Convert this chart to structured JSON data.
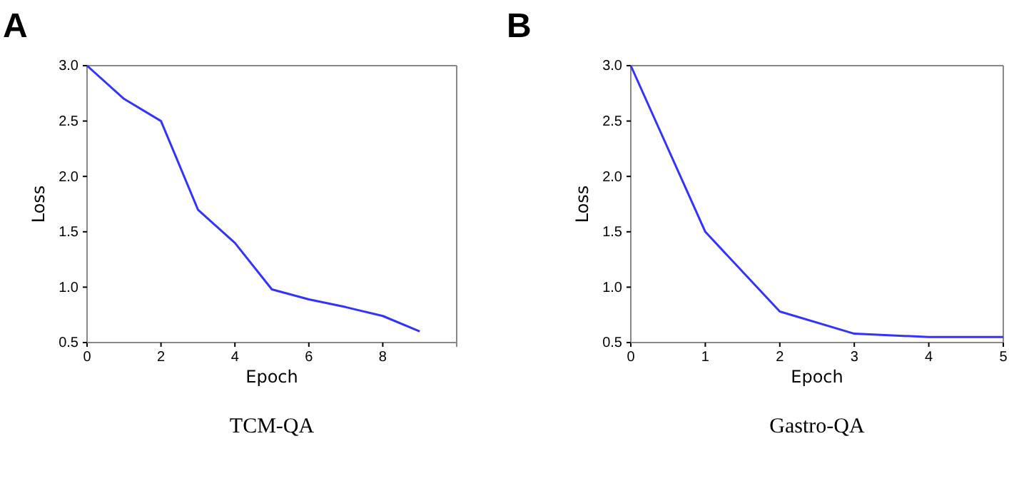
{
  "chart_data": [
    {
      "type": "line",
      "title": "A",
      "xlabel": "Epoch",
      "ylabel": "Loss",
      "x": [
        0,
        1,
        2,
        3,
        4,
        5,
        6,
        7,
        8,
        9
      ],
      "series": [
        {
          "color": "#3333ff",
          "values": [
            3.0,
            2.7,
            2.5,
            1.7,
            1.4,
            0.98,
            0.89,
            0.82,
            0.74,
            0.6
          ]
        }
      ],
      "xlim": [
        0,
        10
      ],
      "xticks": [
        0,
        2,
        4,
        6,
        8
      ],
      "ylim": [
        0.5,
        3.0
      ],
      "yticks": [
        {
          "value": 0.5,
          "label": "0.5"
        },
        {
          "value": 1,
          "label": "1.0"
        },
        {
          "value": 1.5,
          "label": "1.5"
        },
        {
          "value": 2,
          "label": "2.0"
        },
        {
          "value": 2.5,
          "label": "2.5"
        },
        {
          "value": 3,
          "label": "3.0"
        }
      ],
      "grid": false,
      "marker": "none",
      "line_style": "solid",
      "annotations": [
        "TCM-QA"
      ]
    },
    {
      "type": "line",
      "title": "B",
      "xlabel": "Epoch",
      "ylabel": "Loss",
      "x": [
        0,
        1,
        2,
        3,
        4,
        5
      ],
      "series": [
        {
          "color": "#3333ff",
          "values": [
            3.0,
            1.5,
            0.78,
            0.58,
            0.55,
            0.55
          ]
        }
      ],
      "xlim": [
        0,
        5
      ],
      "xticks": [
        0,
        1,
        2,
        3,
        4,
        5
      ],
      "ylim": [
        0.5,
        3.0
      ],
      "yticks": [
        {
          "value": 0.5,
          "label": "0.5"
        },
        {
          "value": 1,
          "label": "1.0"
        },
        {
          "value": 1.5,
          "label": "1.5"
        },
        {
          "value": 2,
          "label": "2.0"
        },
        {
          "value": 2.5,
          "label": "2.5"
        },
        {
          "value": 3,
          "label": "3.0"
        }
      ],
      "grid": false,
      "marker": "none",
      "line_style": "solid",
      "annotations": [
        "Gastro-QA"
      ]
    }
  ]
}
